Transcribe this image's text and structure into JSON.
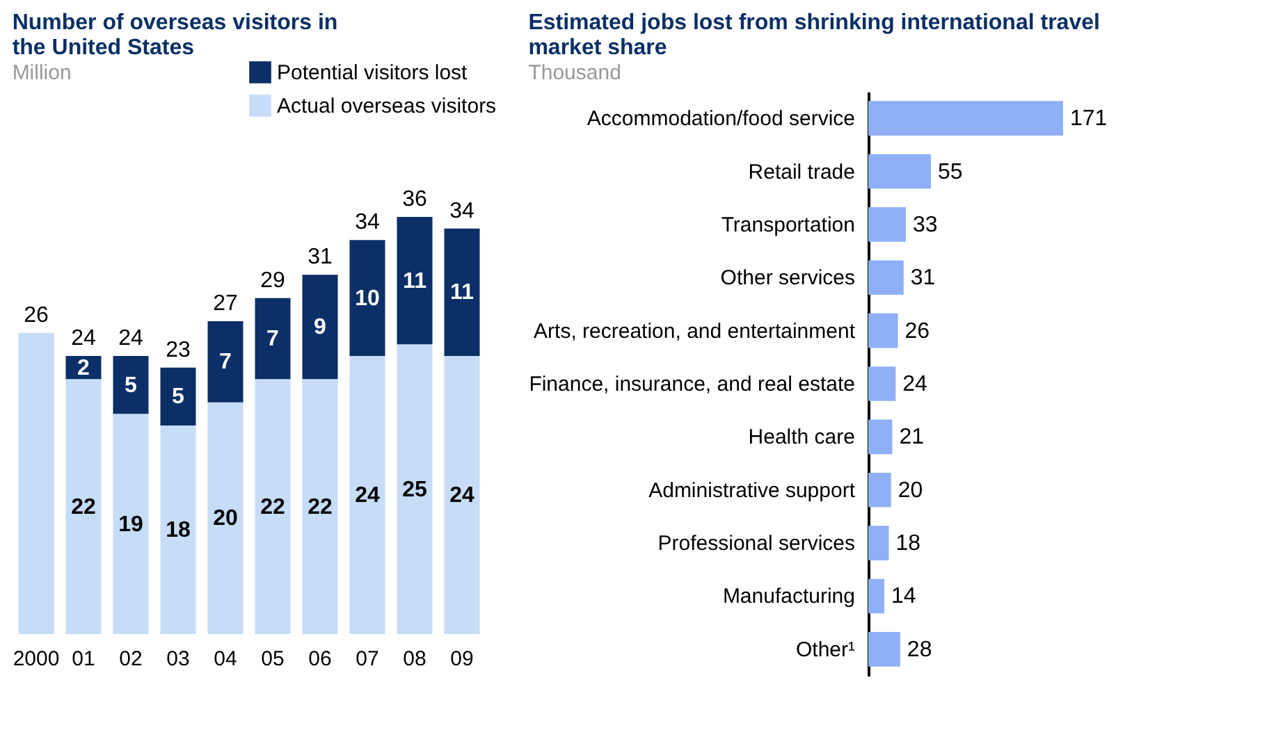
{
  "chart_data": [
    {
      "type": "bar",
      "stacked": true,
      "title": "Number of overseas visitors in the United States",
      "subtitle": "Million",
      "categories": [
        "2000",
        "01",
        "02",
        "03",
        "04",
        "05",
        "06",
        "07",
        "08",
        "09"
      ],
      "series": [
        {
          "name": "Actual overseas visitors",
          "color": "#c6dcf7",
          "values": [
            26,
            22,
            19,
            18,
            20,
            22,
            22,
            24,
            25,
            24
          ],
          "value_labels": [
            null,
            "22",
            "19",
            "18",
            "20",
            "22",
            "22",
            "24",
            "25",
            "24"
          ]
        },
        {
          "name": "Potential visitors lost",
          "color": "#0b2f66",
          "values": [
            null,
            2,
            5,
            5,
            7,
            7,
            9,
            10,
            11,
            11
          ],
          "value_labels": [
            null,
            "2",
            "5",
            "5",
            "7",
            "7",
            "9",
            "10",
            "11",
            "11"
          ]
        }
      ],
      "totals": [
        "26",
        "24",
        "24",
        "23",
        "27",
        "29",
        "31",
        "34",
        "36",
        "34"
      ],
      "legend": "top"
    },
    {
      "type": "bar",
      "orientation": "horizontal",
      "title": "Estimated jobs lost from shrinking international travel market share",
      "subtitle": "Thousand",
      "categories": [
        "Accommodation/food service",
        "Retail trade",
        "Transportation",
        "Other services",
        "Arts, recreation, and entertainment",
        "Finance, insurance, and real estate",
        "Health care",
        "Administrative support",
        "Professional services",
        "Manufacturing",
        "Other¹"
      ],
      "values": [
        171,
        55,
        33,
        31,
        26,
        24,
        21,
        20,
        18,
        14,
        28
      ],
      "color": "#8fb0f7",
      "data_labels": true
    }
  ]
}
